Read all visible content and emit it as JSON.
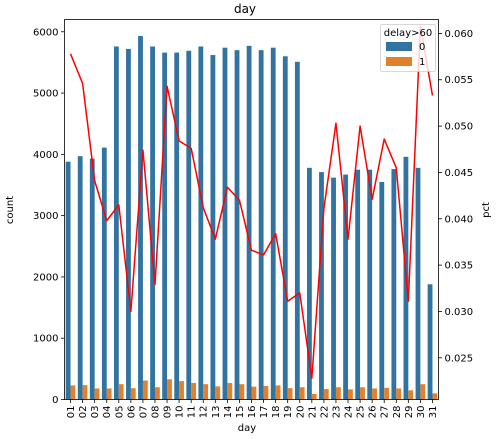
{
  "chart_data": {
    "type": "bar",
    "title": "day",
    "xlabel": "day",
    "ylabel": "count",
    "y2label": "pct",
    "ylim": [
      0,
      6200
    ],
    "y2lim": [
      0.0205,
      0.0615
    ],
    "yticks": [
      0,
      1000,
      2000,
      3000,
      4000,
      5000,
      6000
    ],
    "y2ticks": [
      "0.025",
      "0.030",
      "0.035",
      "0.040",
      "0.045",
      "0.050",
      "0.055",
      "0.060"
    ],
    "grid": false,
    "legend": {
      "title": "delay>60",
      "placement": "top-right"
    },
    "categories": [
      "01",
      "02",
      "03",
      "04",
      "05",
      "06",
      "07",
      "08",
      "09",
      "10",
      "11",
      "12",
      "13",
      "14",
      "15",
      "16",
      "17",
      "18",
      "19",
      "20",
      "21",
      "22",
      "23",
      "24",
      "25",
      "26",
      "27",
      "28",
      "29",
      "30",
      "31"
    ],
    "series": [
      {
        "name": "0",
        "type": "bar",
        "color": "#3274a1",
        "values": [
          3880,
          3970,
          3930,
          4110,
          5760,
          5720,
          5930,
          5760,
          5660,
          5660,
          5690,
          5760,
          5620,
          5740,
          5700,
          5770,
          5700,
          5740,
          5600,
          5510,
          3780,
          3710,
          3620,
          3670,
          3750,
          3750,
          3550,
          3760,
          3960,
          3780,
          1880
        ]
      },
      {
        "name": "1",
        "type": "bar",
        "color": "#e1812c",
        "values": [
          230,
          235,
          180,
          180,
          250,
          185,
          310,
          200,
          330,
          300,
          270,
          250,
          215,
          270,
          250,
          210,
          220,
          230,
          185,
          200,
          90,
          170,
          200,
          165,
          200,
          180,
          190,
          180,
          150,
          250,
          100
        ]
      },
      {
        "name": "pct",
        "type": "line",
        "axis": "right",
        "color": "#ff0000",
        "values": [
          0.0578,
          0.0546,
          0.0441,
          0.0398,
          0.0415,
          0.03,
          0.0474,
          0.0329,
          0.0543,
          0.0484,
          0.0476,
          0.0412,
          0.0378,
          0.0434,
          0.042,
          0.0366,
          0.0361,
          0.0384,
          0.0311,
          0.032,
          0.0228,
          0.0411,
          0.0503,
          0.0378,
          0.05,
          0.0421,
          0.0486,
          0.0455,
          0.0311,
          0.0608,
          0.0533
        ]
      }
    ]
  }
}
